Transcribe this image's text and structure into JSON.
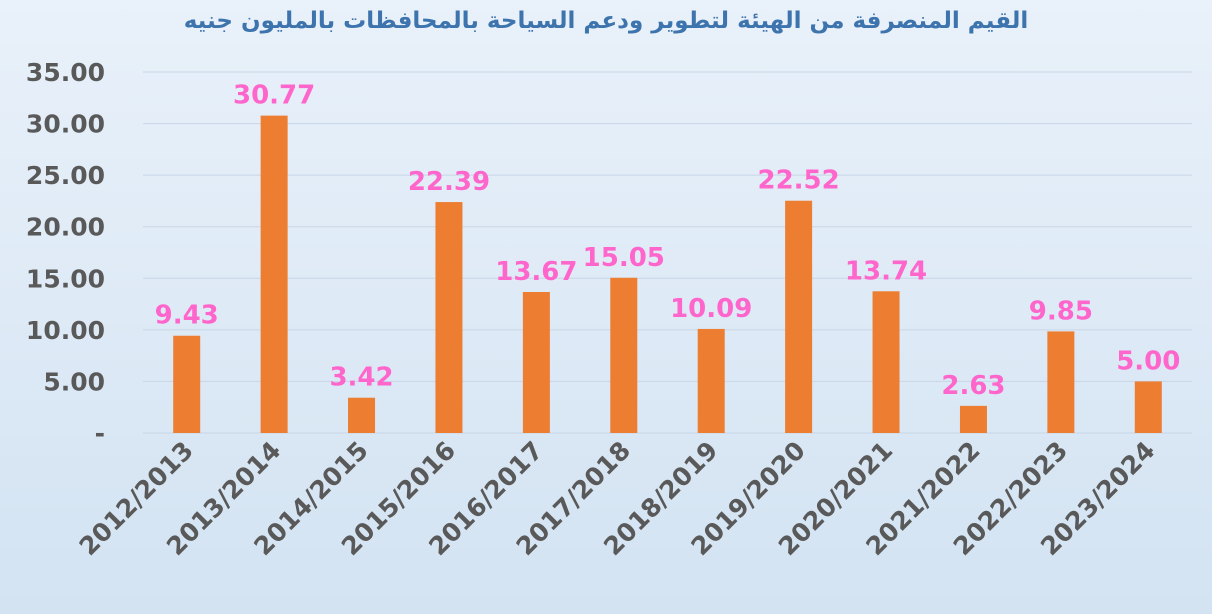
{
  "chart_data": {
    "type": "bar",
    "title": "القيم المنصرفة من الهيئة لتطوير ودعم السياحة بالمحافظات بالمليون جنيه",
    "categories": [
      "2012/2013",
      "2013/2014",
      "2014/2015",
      "2015/2016",
      "2016/2017",
      "2017/2018",
      "2018/2019",
      "2019/2020",
      "2020/2021",
      "2021/2022",
      "2022/2023",
      "2023/2024"
    ],
    "values": [
      9.43,
      30.77,
      3.42,
      22.39,
      13.67,
      15.05,
      10.09,
      22.52,
      13.74,
      2.63,
      9.85,
      5.0
    ],
    "data_labels": [
      "9.43",
      "30.77",
      "3.42",
      "22.39",
      "13.67",
      "15.05",
      "10.09",
      "22.52",
      "13.74",
      "2.63",
      "9.85",
      "5.00"
    ],
    "ylim": [
      0,
      35
    ],
    "yticks": [
      0,
      5,
      10,
      15,
      20,
      25,
      30,
      35
    ],
    "ytick_labels": [
      "-",
      "5.00",
      "10.00",
      "15.00",
      "20.00",
      "25.00",
      "30.00",
      "35.00"
    ],
    "grid": true,
    "legend": "none",
    "colors": {
      "bar": "#ed7d31",
      "data_label": "#ff66cc",
      "grid": "#c8d6e6",
      "axis_text": "#595959",
      "title": "#3e74ad"
    }
  }
}
